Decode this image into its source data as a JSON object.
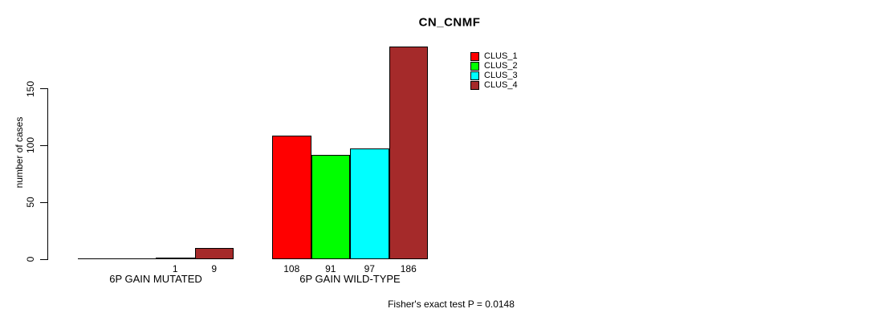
{
  "title": "CN_CNMF",
  "footer": "Fisher's exact test P = 0.0148",
  "chart_data": {
    "type": "bar",
    "title": "CN_CNMF",
    "ylabel": "number of cases",
    "xlabel": "",
    "categories": [
      "6P GAIN MUTATED",
      "6P GAIN WILD-TYPE"
    ],
    "series": [
      {
        "name": "CLUS_1",
        "color": "#FF0000",
        "values": [
          0,
          108
        ]
      },
      {
        "name": "CLUS_2",
        "color": "#00FF00",
        "values": [
          0,
          91
        ]
      },
      {
        "name": "CLUS_3",
        "color": "#00FFFF",
        "values": [
          1,
          97
        ]
      },
      {
        "name": "CLUS_4",
        "color": "#A52A2A",
        "values": [
          9,
          186
        ]
      }
    ],
    "bar_value_labels": [
      [
        "",
        "",
        "1",
        "9"
      ],
      [
        "108",
        "91",
        "97",
        "186"
      ]
    ],
    "yticks": [
      0,
      50,
      100,
      150
    ],
    "ylim": [
      0,
      186
    ],
    "grid": false,
    "legend_position": "top-right",
    "annotation": "Fisher's exact test P = 0.0148"
  }
}
